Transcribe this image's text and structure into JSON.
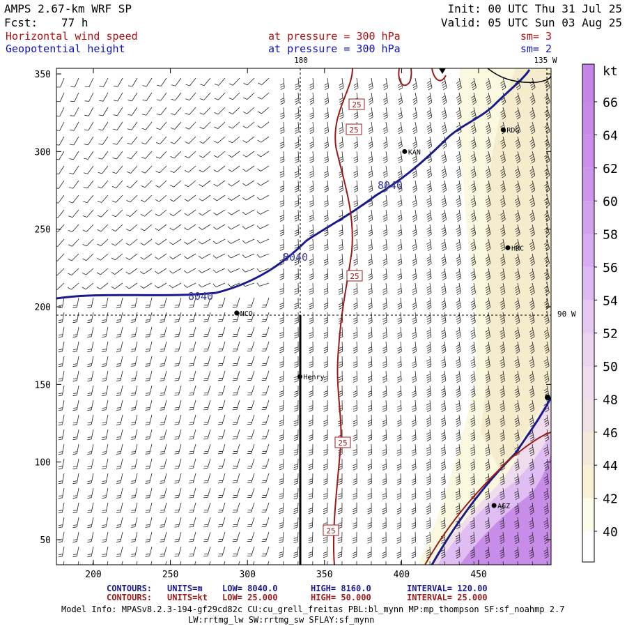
{
  "header": {
    "title": "AMPS 2.67-km WRF SP",
    "fcst_label": "Fcst:",
    "fcst_hours": "77 h",
    "init": "Init: 00 UTC Thu 31 Jul 25",
    "valid": "Valid: 05 UTC Sun 03 Aug 25"
  },
  "fields": [
    {
      "name": "Horizontal wind speed",
      "level": "at pressure =  300 hPa",
      "smooth": "sm= 3",
      "color": "#b01010"
    },
    {
      "name": "Geopotential height",
      "level": "at pressure =  300 hPa",
      "smooth": "sm= 2",
      "color": "#1010c0"
    }
  ],
  "map": {
    "x_ticks": [
      "200",
      "250",
      "300",
      "350",
      "400",
      "450"
    ],
    "y_ticks": [
      "350",
      "300",
      "250",
      "200",
      "150",
      "100",
      "50"
    ],
    "meridian_labels": {
      "top_center": "180",
      "top_right": "135 W",
      "right": "90 W"
    },
    "stations": [
      {
        "name": "RDG",
        "x": 466,
        "y": 314
      },
      {
        "name": "KAN",
        "x": 402,
        "y": 300
      },
      {
        "name": "HRC",
        "x": 469,
        "y": 238
      },
      {
        "name": "NCO",
        "x": 293,
        "y": 196
      },
      {
        "name": "Henry",
        "x": 334,
        "y": 155
      },
      {
        "name": "AGZ",
        "x": 460,
        "y": 72
      }
    ],
    "height_contour_labels": [
      "8040",
      "8040",
      "8040"
    ],
    "wind_contour_labels": [
      "25",
      "25",
      "25",
      "25",
      "25"
    ]
  },
  "colorbar": {
    "unit": "kt",
    "ticks": [
      "66",
      "64",
      "62",
      "60",
      "58",
      "56",
      "54",
      "52",
      "50",
      "48",
      "46",
      "44",
      "42",
      "40"
    ],
    "colors": [
      "#ffffff",
      "#fbf8e0",
      "#f7efd0",
      "#f3e6d6",
      "#efdcec",
      "#e6c8f3",
      "#d6a8f0",
      "#c88de8"
    ]
  },
  "footer": {
    "contours_label": "CONTOURS:",
    "row1": {
      "units": "UNITS=m",
      "low": "LOW=  8040.0",
      "high": "HIGH=  8160.0",
      "interval": "INTERVAL=   120.00"
    },
    "row2": {
      "units": "UNITS=kt",
      "low": "LOW=  25.000",
      "high": "HIGH=  50.000",
      "interval": "INTERVAL=   25.000"
    },
    "model_info": "Model Info: MPASv8.2.3-194-gf29cd82c CU:cu_grell_freitas PBL:bl_mynn MP:mp_thompson SF:sf_noahmp 2.7",
    "model_info2": "LW:rrtmg_lw SW:rrtmg_sw SFLAY:sf_mynn"
  }
}
